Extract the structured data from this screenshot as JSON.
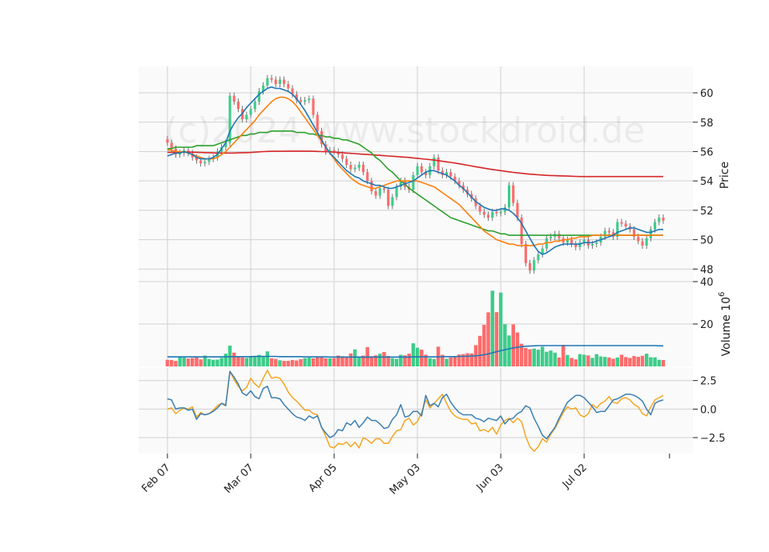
{
  "chart_data": {
    "type": "candlestick",
    "watermark": "(c)2024 www.stockdroid.de",
    "x_tick_labels": [
      "Feb 07",
      "Mar 07",
      "Apr 05",
      "May 03",
      "Jun 03",
      "Jul 02"
    ],
    "x_tick_index": [
      0,
      20,
      40,
      60,
      80,
      100
    ],
    "num_sessions": 120,
    "colors": {
      "up": "#3dcc8a",
      "down": "#ff6b6b",
      "wick": "#555555",
      "ma_fast": "#1f77b4",
      "ma_mid": "#ff7f0e",
      "ma_slow": "#2ca02c",
      "ma_long": "#d62728",
      "vol_avg": "#1f77b4",
      "osc_a": "#f5a623",
      "osc_b": "#3c7fb1"
    },
    "price_panel": {
      "ylabel": "Price",
      "ylim": [
        47.2,
        61.8
      ],
      "yticks": [
        48,
        50,
        52,
        54,
        56,
        58,
        60
      ],
      "close": [
        56.6,
        56.2,
        55.8,
        55.9,
        56.1,
        55.9,
        55.6,
        55.4,
        55.2,
        55.3,
        55.5,
        55.6,
        56.0,
        56.3,
        56.6,
        59.8,
        59.4,
        58.9,
        58.2,
        58.5,
        58.9,
        59.4,
        60.1,
        60.5,
        61.0,
        60.9,
        60.6,
        60.9,
        60.6,
        60.3,
        59.9,
        59.5,
        59.4,
        59.5,
        59.6,
        58.5,
        57.4,
        56.5,
        56.0,
        56.1,
        56.0,
        55.8,
        55.5,
        55.1,
        54.8,
        54.9,
        55.1,
        54.6,
        54.0,
        53.3,
        53.0,
        53.5,
        53.4,
        52.3,
        52.9,
        53.6,
        54.0,
        53.6,
        53.4,
        54.4,
        55.0,
        54.6,
        54.4,
        55.0,
        55.6,
        54.7,
        54.4,
        54.6,
        54.3,
        54.0,
        53.7,
        53.4,
        53.1,
        52.8,
        52.3,
        51.9,
        51.7,
        51.5,
        51.9,
        51.8,
        51.9,
        52.2,
        53.7,
        52.5,
        51.5,
        49.7,
        48.4,
        47.9,
        48.6,
        49.0,
        49.4,
        50.1,
        50.2,
        50.4,
        50.1,
        49.8,
        50.0,
        49.7,
        49.5,
        49.8,
        50.0,
        49.6,
        49.7,
        49.8,
        50.2,
        50.6,
        50.5,
        50.2,
        51.2,
        51.1,
        50.9,
        50.7,
        50.2,
        49.9,
        49.6,
        50.1,
        50.7,
        51.2,
        51.5,
        51.3
      ],
      "ma_fast": [
        55.7,
        55.8,
        55.9,
        55.9,
        56.0,
        55.9,
        55.8,
        55.6,
        55.5,
        55.5,
        55.5,
        55.6,
        55.8,
        56.2,
        56.6,
        57.4,
        57.9,
        58.3,
        58.6,
        59.0,
        59.3,
        59.6,
        59.9,
        60.1,
        60.3,
        60.4,
        60.3,
        60.3,
        60.2,
        60.1,
        59.9,
        59.6,
        59.2,
        58.8,
        58.3,
        57.8,
        57.3,
        56.8,
        56.3,
        55.9,
        55.6,
        55.3,
        55.0,
        54.7,
        54.5,
        54.3,
        54.2,
        54.0,
        53.9,
        53.8,
        53.7,
        53.7,
        53.6,
        53.5,
        53.5,
        53.6,
        53.7,
        53.8,
        53.9,
        54.0,
        54.2,
        54.4,
        54.6,
        54.7,
        54.7,
        54.6,
        54.5,
        54.4,
        54.2,
        54.0,
        53.7,
        53.5,
        53.2,
        52.9,
        52.6,
        52.4,
        52.2,
        52.1,
        52.0,
        52.0,
        52.1,
        52.1,
        52.0,
        51.8,
        51.5,
        51.1,
        50.6,
        50.1,
        49.6,
        49.2,
        49.0,
        49.1,
        49.3,
        49.5,
        49.6,
        49.7,
        49.7,
        49.7,
        49.7,
        49.7,
        49.8,
        49.8,
        49.8,
        49.9,
        50.0,
        50.1,
        50.2,
        50.3,
        50.5,
        50.6,
        50.7,
        50.8,
        50.8,
        50.7,
        50.6,
        50.5,
        50.5,
        50.6,
        50.7,
        50.7
      ],
      "ma_mid": [
        56.1,
        56.1,
        56.0,
        56.0,
        56.0,
        55.9,
        55.8,
        55.7,
        55.6,
        55.5,
        55.5,
        55.5,
        55.6,
        55.8,
        56.0,
        56.3,
        56.6,
        56.9,
        57.2,
        57.5,
        57.8,
        58.1,
        58.5,
        58.8,
        59.1,
        59.4,
        59.6,
        59.7,
        59.7,
        59.6,
        59.4,
        59.1,
        58.7,
        58.3,
        57.9,
        57.5,
        57.1,
        56.7,
        56.3,
        55.9,
        55.5,
        55.1,
        54.8,
        54.5,
        54.2,
        54.0,
        53.8,
        53.7,
        53.6,
        53.5,
        53.5,
        53.6,
        53.7,
        53.8,
        53.9,
        54.0,
        54.0,
        54.0,
        54.0,
        54.0,
        54.0,
        53.9,
        53.8,
        53.7,
        53.6,
        53.4,
        53.2,
        53.0,
        52.8,
        52.6,
        52.4,
        52.1,
        51.8,
        51.5,
        51.2,
        50.9,
        50.6,
        50.4,
        50.2,
        50.0,
        49.9,
        49.8,
        49.7,
        49.7,
        49.6,
        49.6,
        49.6,
        49.6,
        49.6,
        49.7,
        49.7,
        49.8,
        49.8,
        49.9,
        49.9,
        50.0,
        50.0,
        50.1,
        50.1,
        50.2,
        50.2,
        50.2,
        50.3,
        50.3,
        50.3,
        50.3,
        50.3,
        50.3,
        50.3,
        50.3,
        50.3,
        50.3,
        50.3,
        50.3,
        50.3,
        50.3,
        50.3,
        50.3,
        50.3,
        50.3
      ],
      "ma_slow": [
        56.2,
        56.2,
        56.3,
        56.3,
        56.3,
        56.3,
        56.3,
        56.4,
        56.4,
        56.4,
        56.4,
        56.4,
        56.5,
        56.6,
        56.7,
        56.8,
        56.9,
        57.0,
        57.1,
        57.1,
        57.2,
        57.2,
        57.3,
        57.3,
        57.3,
        57.4,
        57.4,
        57.4,
        57.4,
        57.4,
        57.4,
        57.3,
        57.3,
        57.3,
        57.2,
        57.2,
        57.1,
        57.1,
        57.0,
        57.0,
        56.9,
        56.9,
        56.8,
        56.8,
        56.7,
        56.6,
        56.5,
        56.3,
        56.1,
        55.9,
        55.6,
        55.4,
        55.1,
        54.8,
        54.6,
        54.3,
        54.0,
        53.8,
        53.5,
        53.3,
        53.1,
        52.9,
        52.7,
        52.5,
        52.3,
        52.1,
        51.9,
        51.7,
        51.5,
        51.4,
        51.3,
        51.2,
        51.1,
        51.0,
        50.9,
        50.8,
        50.7,
        50.6,
        50.6,
        50.5,
        50.4,
        50.4,
        50.3,
        50.3,
        50.3,
        50.3,
        50.3,
        50.3,
        50.3,
        50.3,
        50.3,
        50.3,
        50.3,
        50.3,
        50.3,
        50.3,
        50.3,
        50.3,
        50.3,
        50.3,
        50.3,
        50.3,
        50.3,
        50.3,
        50.3,
        50.3,
        50.3,
        50.3,
        50.3,
        50.3,
        50.3,
        50.3,
        50.3,
        50.3,
        50.3,
        50.3,
        50.3,
        50.3,
        50.3,
        50.3
      ],
      "ma_long": [
        55.95,
        55.95,
        55.95,
        55.96,
        55.96,
        55.96,
        55.96,
        55.95,
        55.94,
        55.93,
        55.92,
        55.91,
        55.9,
        55.9,
        55.9,
        55.9,
        55.9,
        55.91,
        55.92,
        55.93,
        55.94,
        55.96,
        55.98,
        56.0,
        56.01,
        56.02,
        56.02,
        56.02,
        56.02,
        56.03,
        56.03,
        56.03,
        56.03,
        56.03,
        56.03,
        56.02,
        56.01,
        56.0,
        55.99,
        55.98,
        55.96,
        55.94,
        55.92,
        55.9,
        55.88,
        55.86,
        55.84,
        55.82,
        55.8,
        55.78,
        55.76,
        55.74,
        55.72,
        55.7,
        55.68,
        55.66,
        55.64,
        55.62,
        55.6,
        55.57,
        55.54,
        55.51,
        55.48,
        55.45,
        55.42,
        55.38,
        55.34,
        55.3,
        55.26,
        55.22,
        55.17,
        55.12,
        55.07,
        55.02,
        54.97,
        54.92,
        54.87,
        54.82,
        54.78,
        54.74,
        54.7,
        54.66,
        54.62,
        54.58,
        54.55,
        54.52,
        54.49,
        54.46,
        54.44,
        54.42,
        54.4,
        54.38,
        54.37,
        54.36,
        54.35,
        54.34,
        54.33,
        54.32,
        54.31,
        54.3,
        54.3,
        54.3,
        54.3,
        54.3,
        54.3,
        54.3,
        54.3,
        54.3,
        54.3,
        54.3,
        54.3,
        54.3,
        54.3,
        54.3,
        54.3,
        54.3,
        54.3,
        54.3,
        54.3,
        54.3
      ]
    },
    "volume_panel": {
      "ylabel": "Volume  10",
      "ylabel_exponent": "6",
      "ylim": [
        0,
        40
      ],
      "yticks": [
        20,
        40
      ],
      "values": [
        3.1,
        3.0,
        2.6,
        4.5,
        4.2,
        3.7,
        3.9,
        4.4,
        3.3,
        5.1,
        3.5,
        3.1,
        3.2,
        4.0,
        6.0,
        9.8,
        6.5,
        4.7,
        4.2,
        4.0,
        4.5,
        4.7,
        5.4,
        4.8,
        7.1,
        3.8,
        3.5,
        2.9,
        2.6,
        2.6,
        3.0,
        2.8,
        3.4,
        3.9,
        4.1,
        3.8,
        4.4,
        4.3,
        3.8,
        3.8,
        3.9,
        5.1,
        4.8,
        4.2,
        6.1,
        8.0,
        4.4,
        5.1,
        9.1,
        4.8,
        5.2,
        6.0,
        6.8,
        4.9,
        3.9,
        3.6,
        5.5,
        5.2,
        6.0,
        10.9,
        8.8,
        7.9,
        5.5,
        3.9,
        3.5,
        9.3,
        5.5,
        3.6,
        4.2,
        4.9,
        5.6,
        5.8,
        6.2,
        6.1,
        10.0,
        14.4,
        19.6,
        25.5,
        35.7,
        25.6,
        34.8,
        19.9,
        14.6,
        19.8,
        16.0,
        10.7,
        8.7,
        8.1,
        8.4,
        7.9,
        9.3,
        6.9,
        7.5,
        6.5,
        4.2,
        10.1,
        5.4,
        4.0,
        3.3,
        5.8,
        5.5,
        5.2,
        4.0,
        5.8,
        4.7,
        4.5,
        4.2,
        3.6,
        4.2,
        5.5,
        4.4,
        4.0,
        4.9,
        4.5,
        5.0,
        6.0,
        4.3,
        4.3,
        3.1,
        3.0
      ],
      "avg": [
        4.5,
        4.5,
        4.5,
        4.5,
        4.5,
        4.5,
        4.5,
        4.5,
        4.5,
        4.5,
        4.5,
        4.5,
        4.5,
        4.5,
        4.5,
        4.6,
        4.6,
        4.6,
        4.6,
        4.6,
        4.6,
        4.7,
        4.7,
        4.7,
        4.7,
        4.7,
        4.7,
        4.6,
        4.6,
        4.6,
        4.6,
        4.6,
        4.6,
        4.5,
        4.5,
        4.5,
        4.5,
        4.5,
        4.5,
        4.4,
        4.4,
        4.4,
        4.4,
        4.4,
        4.4,
        4.4,
        4.4,
        4.4,
        4.4,
        4.4,
        4.4,
        4.4,
        4.4,
        4.4,
        4.4,
        4.4,
        4.4,
        4.4,
        4.4,
        4.5,
        4.5,
        4.5,
        4.5,
        4.5,
        4.5,
        4.5,
        4.6,
        4.6,
        4.6,
        4.6,
        4.7,
        4.7,
        4.8,
        4.9,
        5.0,
        5.2,
        5.5,
        5.9,
        6.4,
        6.9,
        7.4,
        7.9,
        8.3,
        8.7,
        9.0,
        9.3,
        9.5,
        9.6,
        9.7,
        9.8,
        9.8,
        9.8,
        9.8,
        9.8,
        9.8,
        9.8,
        9.8,
        9.8,
        9.8,
        9.8,
        9.8,
        9.8,
        9.8,
        9.8,
        9.8,
        9.8,
        9.8,
        9.8,
        9.8,
        9.8,
        9.8,
        9.8,
        9.8,
        9.8,
        9.8,
        9.8,
        9.8,
        9.8,
        9.7,
        9.7
      ]
    },
    "oscillator_panel": {
      "ylim": [
        -3.9,
        3.6
      ],
      "yticks": [
        2.5,
        0.0,
        -2.5
      ],
      "ytick_labels": [
        "2.5",
        "0.0",
        "−2.5"
      ],
      "line_a": [
        0.0,
        0.1,
        -0.4,
        -0.1,
        0.1,
        0.0,
        0.2,
        -0.7,
        -0.3,
        -0.5,
        -0.4,
        -0.1,
        0.3,
        0.5,
        0.4,
        3.3,
        2.6,
        2.0,
        1.6,
        1.9,
        2.7,
        2.2,
        1.9,
        2.7,
        3.4,
        2.7,
        2.8,
        2.7,
        2.2,
        1.5,
        1.0,
        0.7,
        0.3,
        -0.1,
        -0.1,
        -0.4,
        -0.5,
        -1.6,
        -2.4,
        -3.3,
        -3.4,
        -3.0,
        -3.1,
        -2.9,
        -3.3,
        -2.9,
        -3.4,
        -2.5,
        -2.7,
        -3.0,
        -2.6,
        -2.6,
        -3.0,
        -3.0,
        -2.4,
        -1.9,
        -1.8,
        -1.0,
        -0.8,
        -1.4,
        -1.1,
        -0.3,
        0.8,
        0.1,
        0.5,
        0.9,
        1.3,
        0.5,
        -0.2,
        -0.6,
        -0.8,
        -0.9,
        -0.9,
        -1.3,
        -1.2,
        -1.9,
        -1.8,
        -2.0,
        -1.6,
        -2.2,
        -1.4,
        -1.0,
        -0.8,
        -1.2,
        -0.8,
        -1.1,
        -2.4,
        -3.3,
        -3.7,
        -3.3,
        -2.6,
        -2.9,
        -2.2,
        -1.7,
        -1.0,
        -0.3,
        0.2,
        0.0,
        0.1,
        -0.5,
        -0.7,
        -0.4,
        0.4,
        0.1,
        0.5,
        0.7,
        1.1,
        0.6,
        0.5,
        0.9,
        1.0,
        0.8,
        0.4,
        0.2,
        -0.4,
        -0.6,
        0.2,
        0.8,
        1.0,
        1.2
      ],
      "line_b": [
        0.9,
        0.8,
        0.0,
        0.1,
        0.1,
        -0.1,
        0.0,
        -0.9,
        -0.4,
        -0.5,
        -0.4,
        -0.2,
        0.1,
        0.5,
        0.3,
        3.3,
        2.8,
        2.2,
        1.4,
        1.2,
        1.6,
        1.1,
        0.9,
        1.8,
        2.0,
        1.0,
        1.0,
        0.9,
        0.4,
        0.0,
        -0.4,
        -0.7,
        -0.8,
        -1.0,
        -0.6,
        -0.8,
        -0.6,
        -1.6,
        -2.1,
        -2.5,
        -2.3,
        -1.8,
        -1.9,
        -1.2,
        -1.4,
        -1.0,
        -1.6,
        -1.2,
        -0.7,
        -1.0,
        -1.0,
        -1.3,
        -1.7,
        -1.6,
        -0.9,
        -0.5,
        0.4,
        -0.7,
        -0.6,
        -0.2,
        -0.2,
        -0.6,
        1.2,
        0.3,
        0.5,
        0.2,
        1.0,
        1.3,
        0.6,
        0.1,
        -0.3,
        -0.5,
        -0.5,
        -0.5,
        -0.8,
        -0.9,
        -1.1,
        -0.8,
        -0.9,
        -1.0,
        -0.6,
        -1.3,
        -0.9,
        -0.8,
        -0.4,
        -0.2,
        0.3,
        0.1,
        -0.8,
        -1.5,
        -2.3,
        -2.6,
        -2.1,
        -1.6,
        -0.8,
        -0.1,
        0.6,
        0.9,
        1.2,
        1.2,
        1.0,
        0.6,
        0.2,
        -0.3,
        -0.2,
        -0.2,
        0.3,
        0.8,
        0.9,
        1.1,
        1.3,
        1.3,
        1.2,
        1.0,
        0.7,
        0.0,
        -0.5,
        0.5,
        0.7,
        0.8
      ]
    }
  }
}
